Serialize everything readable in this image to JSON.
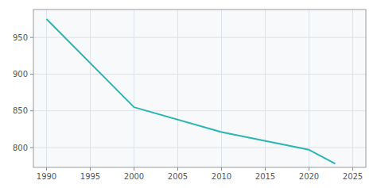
{
  "chart_data": {
    "type": "line",
    "x": [
      1990,
      2000,
      2010,
      2020,
      2023
    ],
    "values": [
      975,
      855,
      821,
      797,
      778
    ],
    "color": "#2ab5b5",
    "xlim": [
      1988.5,
      2026.5
    ],
    "ylim": [
      773,
      988
    ],
    "xticks": [
      1990,
      1995,
      2000,
      2005,
      2010,
      2015,
      2020,
      2025
    ],
    "yticks": [
      800,
      850,
      900,
      950
    ],
    "grid": true
  }
}
